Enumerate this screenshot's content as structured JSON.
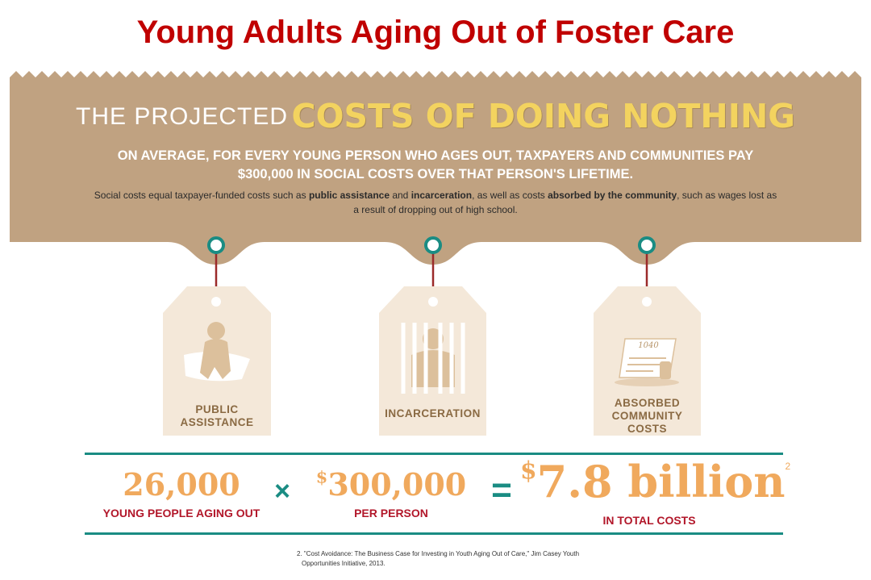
{
  "slide": {
    "title": "Young Adults Aging Out of Foster Care"
  },
  "banner": {
    "heading_small": "THE PROJECTED",
    "heading_big": "COSTS OF DOING NOTHING",
    "subhead_line1": "ON AVERAGE, FOR EVERY YOUNG PERSON WHO AGES OUT, TAXPAYERS AND COMMUNITIES PAY",
    "subhead_line2": "$300,000 IN SOCIAL COSTS OVER THAT PERSON'S LIFETIME.",
    "note": {
      "p1": "Social costs equal taxpayer-funded costs such as ",
      "b1": "public assistance",
      "p2": " and ",
      "b2": "incarceration",
      "p3": ", as well as costs ",
      "b3": "absorbed by the community",
      "p4": ", such as wages lost as a result of dropping out of high school."
    }
  },
  "tags": [
    {
      "line1": "PUBLIC",
      "line2": "ASSISTANCE",
      "icon": "seated-person-icon"
    },
    {
      "line1": "INCARCERATION",
      "line2": "",
      "icon": "prison-bars-icon"
    },
    {
      "line1": "ABSORBED",
      "line2": "COMMUNITY COSTS",
      "icon": "tax-form-icon",
      "form_number": "1040"
    }
  ],
  "equation": {
    "youth_count": "26,000",
    "youth_caption": "YOUNG PEOPLE AGING OUT",
    "times": "×",
    "per_person_symbol": "$",
    "per_person_value": "300,000",
    "per_person_caption": "PER PERSON",
    "equals": "=",
    "total_symbol": "$",
    "total_value": "7.8 billion",
    "total_note": "2",
    "total_caption": "IN TOTAL COSTS"
  },
  "footnote": {
    "line1": "2. \"Cost Avoidance: The Business Case for Investing in Youth Aging Out of Care,\" Jim Casey Youth",
    "line2": "Opportunities Initiative, 2013."
  },
  "colors": {
    "title_red": "#c00000",
    "banner_tan": "#c0a281",
    "tag_cream": "#f4e8d9",
    "headline_yellow": "#f3d35f",
    "teal": "#1a8c83",
    "orange": "#f0a95d",
    "caption_red": "#b2172a"
  }
}
